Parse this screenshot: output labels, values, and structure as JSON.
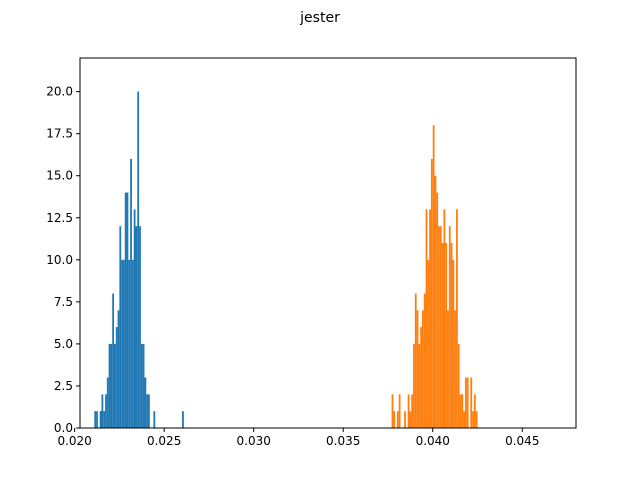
{
  "chart_data": {
    "type": "histogram",
    "title": "jester",
    "xlabel": "",
    "ylabel": "",
    "xlim": [
      0.0203,
      0.048
    ],
    "ylim": [
      0,
      22.0
    ],
    "grid": false,
    "x_ticks": [
      0.02,
      0.025,
      0.03,
      0.035,
      0.04,
      0.045
    ],
    "x_tick_labels": [
      "0.020",
      "0.025",
      "0.030",
      "0.035",
      "0.040",
      "0.045"
    ],
    "y_ticks": [
      0.0,
      2.5,
      5.0,
      7.5,
      10.0,
      12.5,
      15.0,
      17.5,
      20.0
    ],
    "y_tick_labels": [
      "0.0",
      "2.5",
      "5.0",
      "7.5",
      "10.0",
      "12.5",
      "15.0",
      "17.5",
      "20.0"
    ],
    "series": [
      {
        "color": "#1f77b4",
        "bin_start": 0.0211,
        "bin_width": 0.0001,
        "counts": [
          1,
          1,
          0,
          1,
          2,
          1,
          2,
          3,
          5,
          5,
          8,
          5,
          6,
          7,
          12,
          10,
          10,
          14,
          14,
          10,
          16,
          10,
          13,
          12,
          20,
          12,
          5,
          5,
          3,
          2,
          2,
          0,
          0,
          1,
          0,
          0,
          0,
          0,
          0,
          0,
          0,
          0,
          0,
          0,
          0,
          0,
          0,
          0,
          0,
          1
        ]
      },
      {
        "color": "#ff7f0e",
        "bin_start": 0.0377,
        "bin_width": 0.0001,
        "counts": [
          2,
          1,
          0,
          1,
          2,
          0,
          0,
          1,
          0,
          2,
          1,
          2,
          5,
          8,
          7,
          5,
          6,
          7,
          8,
          13,
          10,
          13,
          16,
          18,
          15,
          14,
          12,
          12,
          11,
          13,
          11,
          7,
          12,
          11,
          10,
          7,
          13,
          5,
          2,
          2,
          1,
          3,
          3,
          0,
          3,
          1,
          2,
          1
        ]
      }
    ]
  }
}
